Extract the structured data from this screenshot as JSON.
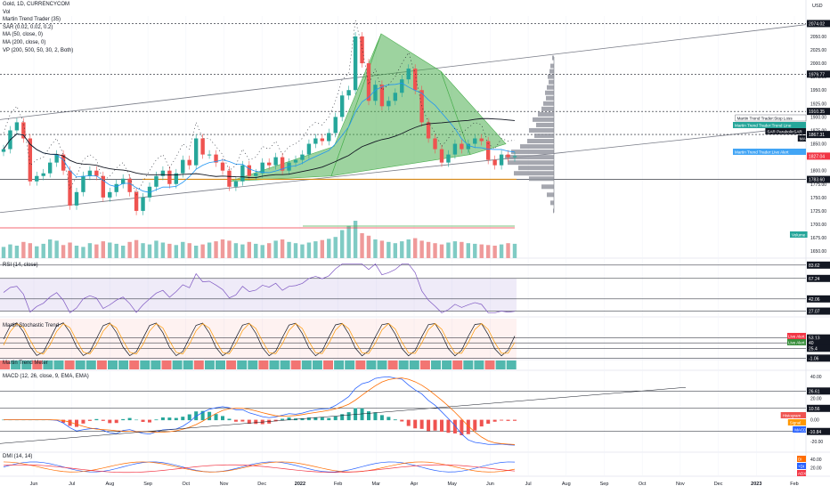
{
  "header": {
    "symbol": "Gold, 1D, CURRENCYCOM",
    "vol": "Vol",
    "indicators": [
      "Martin Trend Trader (35)",
      "SAR (0.02, 0.02, 0.2)",
      "MA (50, close, 0)",
      "MA (200, close, 0)",
      "VP (200, 500, 50, 30, 2, Both)"
    ]
  },
  "currency": "USD",
  "subpanes": {
    "rsi": "RSI (14, close)",
    "stoch": "Martin Stochastic Trend",
    "metric": "Martin Trend Meter",
    "macd": "MACD (12, 26, close, 9, EMA, EMA)",
    "dmi": "DMI (14, 14)"
  },
  "chart_data": {
    "type": "candlestick",
    "x_ticks": [
      "Jun",
      "Jul",
      "Aug",
      "Sep",
      "Oct",
      "Nov",
      "Dec",
      "2022",
      "Feb",
      "Mar",
      "Apr",
      "May",
      "Jun",
      "Jul",
      "Aug",
      "Sep",
      "Oct",
      "Nov",
      "Dec",
      "2023",
      "Feb"
    ],
    "y_ticks": [
      1650.0,
      1675.0,
      1700.0,
      1725.0,
      1750.0,
      1775.0,
      1800.0,
      1825.0,
      1850.0,
      1875.0,
      1900.0,
      1925.0,
      1950.0,
      1975.0,
      2000.0,
      2025.0,
      2050.0
    ],
    "ylim": [
      1637,
      2088
    ],
    "price_labels": [
      {
        "value": 2074.02,
        "text": "2074.02",
        "color": "#131722"
      },
      {
        "value": 1979.77,
        "text": "1979.77",
        "color": "#131722"
      },
      {
        "value": 1910.35,
        "text": "1910.35",
        "color": "#131722"
      },
      {
        "value": 1867.31,
        "text": "1867.31",
        "color": "#131722"
      },
      {
        "value": 1827.04,
        "text": "1827.04",
        "color": "#f23645"
      },
      {
        "value": 1783.6,
        "text": "1783.60",
        "color": "#131722"
      }
    ],
    "indicator_tags": [
      {
        "text": "Martin Trend Trader:Stop Loss",
        "color": "#ffffff"
      },
      {
        "text": "Martin Trend Trader:Trend Line",
        "color": "#26a69a"
      },
      {
        "text": "SAR ParabolicSAR",
        "color": "#131722"
      },
      {
        "text": "MA",
        "color": "#131722"
      },
      {
        "text": "Martin Trend Trader:Live Alert",
        "color": "#42a5f5"
      },
      {
        "text": "Volume",
        "color": "#26a69a"
      }
    ],
    "price_path": [
      1840,
      1875,
      1890,
      1860,
      1780,
      1790,
      1795,
      1815,
      1830,
      1800,
      1735,
      1760,
      1790,
      1800,
      1790,
      1750,
      1760,
      1775,
      1785,
      1760,
      1725,
      1750,
      1770,
      1790,
      1800,
      1775,
      1795,
      1820,
      1810,
      1860,
      1830,
      1830,
      1815,
      1800,
      1770,
      1780,
      1810,
      1790,
      1795,
      1815,
      1810,
      1825,
      1800,
      1815,
      1820,
      1830,
      1850,
      1860,
      1855,
      1870,
      1900,
      1940,
      1950,
      2050,
      2000,
      1930,
      1960,
      1920,
      1930,
      1945,
      1970,
      1990,
      1950,
      1890,
      1860,
      1840,
      1815,
      1830,
      1850,
      1840,
      1850,
      1860,
      1855,
      1820,
      1810,
      1830,
      1825,
      1827
    ],
    "rsi": {
      "levels": [
        83.62,
        67.24,
        42.06,
        27.07
      ],
      "ylim": [
        20,
        90
      ]
    },
    "stoch": {
      "levels": [
        53.13,
        40,
        25.4,
        -1.06
      ],
      "tags": [
        "Live Alert",
        "Live Alert"
      ],
      "ylim": [
        -5,
        105
      ]
    },
    "macd": {
      "y_ticks": [
        40.0,
        20.0,
        0.0,
        -20.0
      ],
      "levels": [
        26.61,
        10.56,
        -10.84
      ],
      "tags": [
        "Histogram",
        "Signal",
        "MACD"
      ],
      "ylim": [
        -30,
        45
      ]
    },
    "dmi": {
      "y_ticks": [
        40.0,
        20.0
      ],
      "tags": [
        "DI",
        "+DI",
        "ADX"
      ],
      "ylim": [
        0,
        55
      ]
    }
  }
}
